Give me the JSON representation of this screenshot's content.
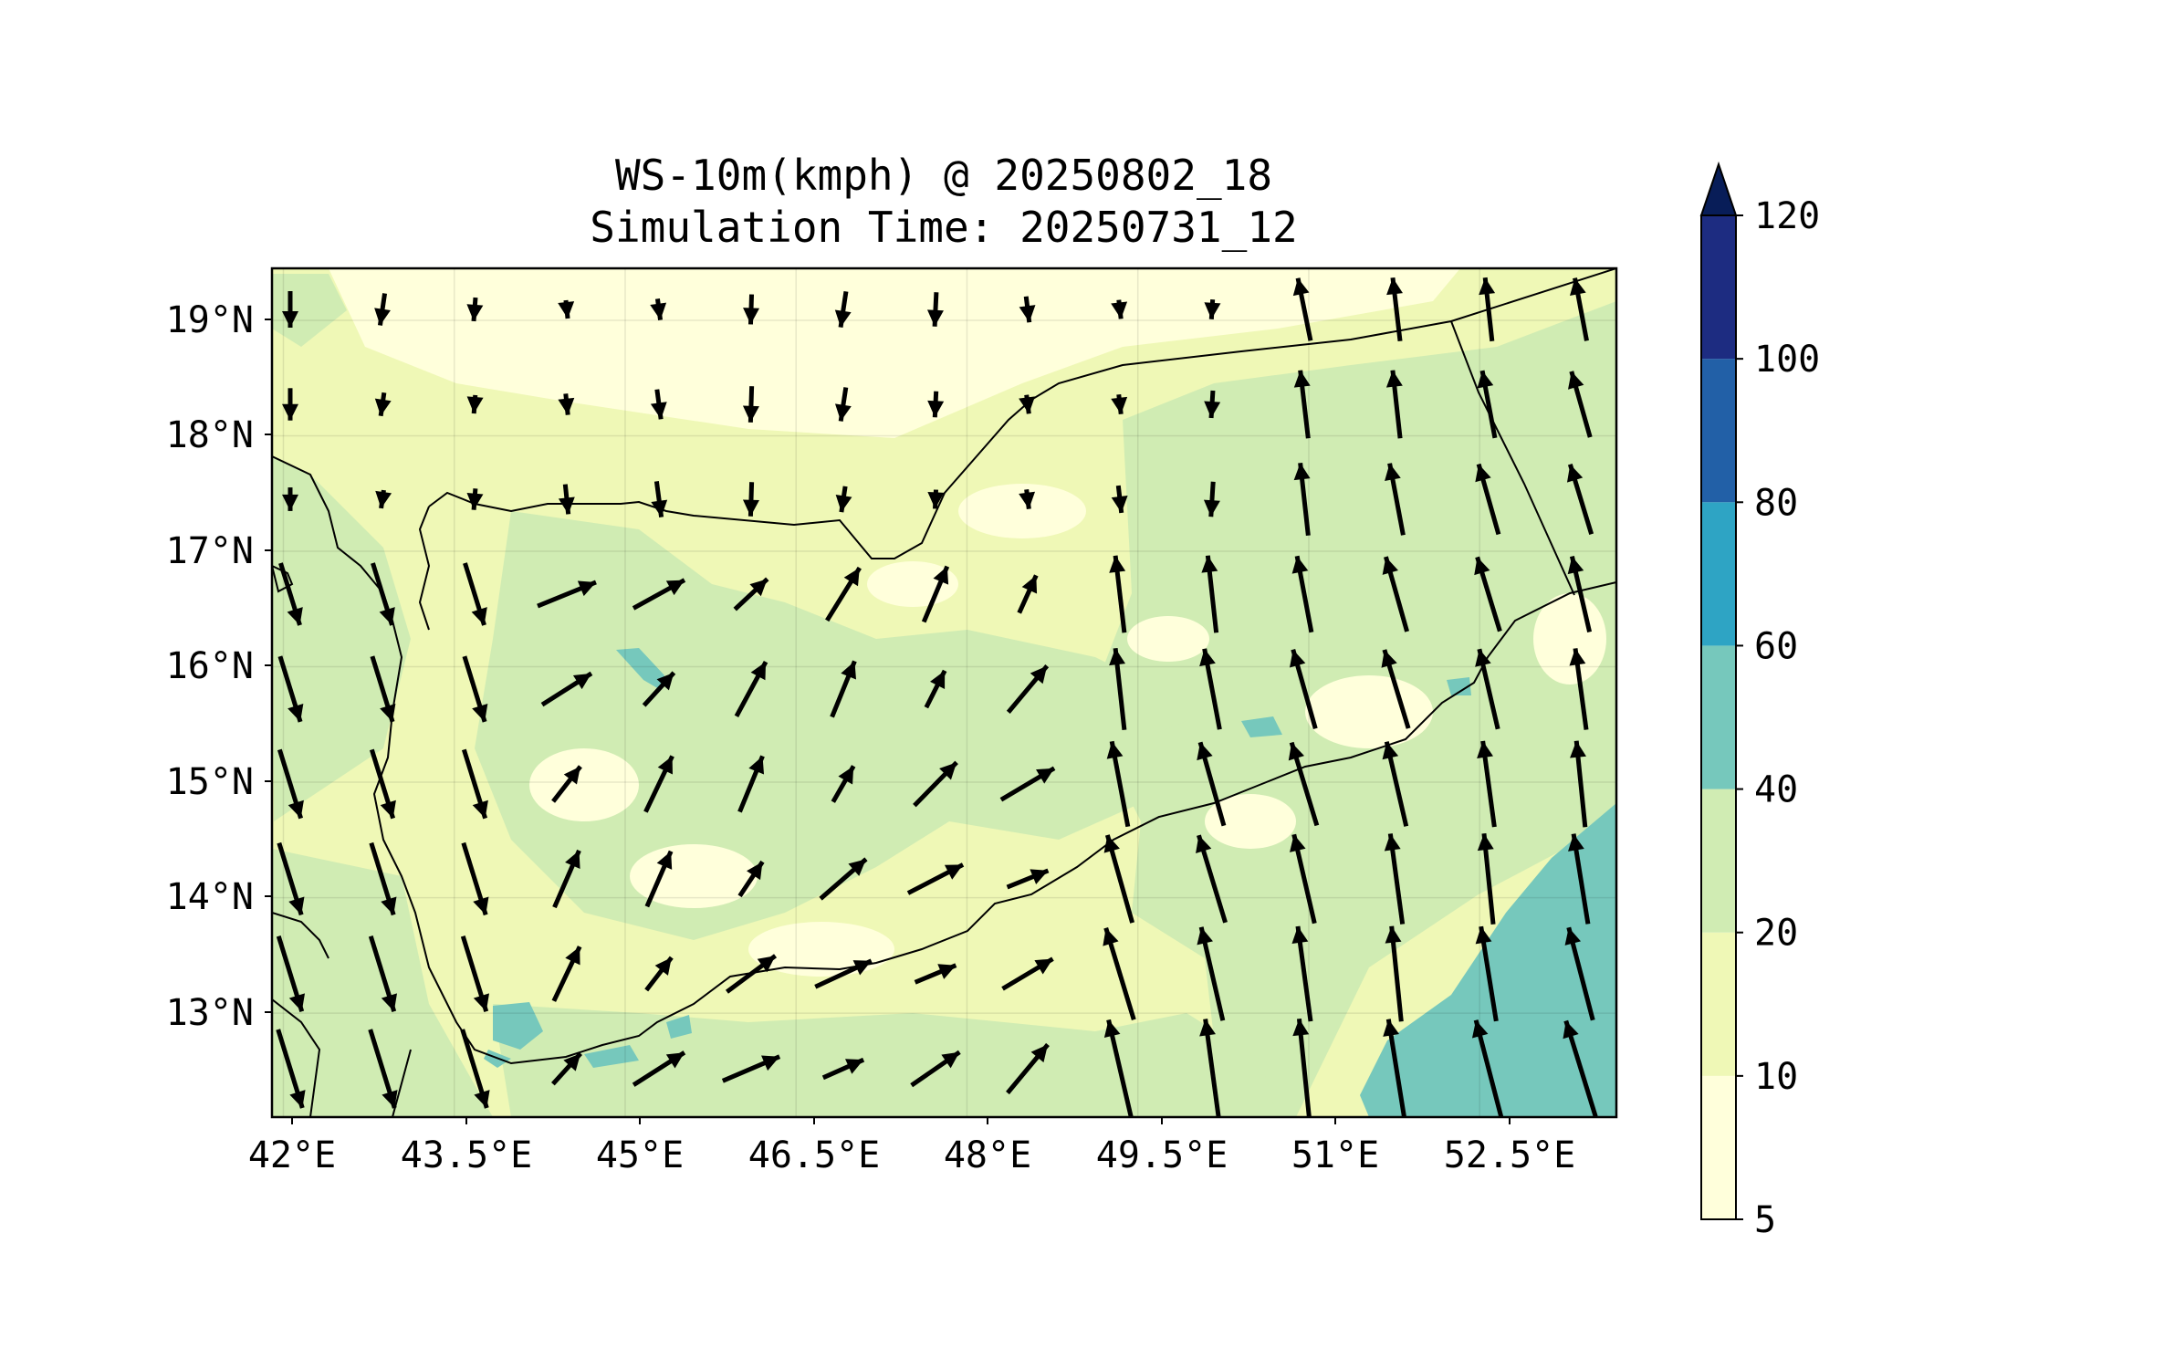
{
  "title": {
    "line1": "WS-10m(kmph) @ 20250802_18",
    "line2": "Simulation Time: 20250731_12"
  },
  "map": {
    "lon_range": [
      41.9,
      53.7
    ],
    "lat_range": [
      12.1,
      19.45
    ],
    "x_ticks": [
      {
        "value": 42.0,
        "label": "42°E"
      },
      {
        "value": 43.5,
        "label": "43.5°E"
      },
      {
        "value": 45.0,
        "label": "45°E"
      },
      {
        "value": 46.5,
        "label": "46.5°E"
      },
      {
        "value": 48.0,
        "label": "48°E"
      },
      {
        "value": 49.5,
        "label": "49.5°E"
      },
      {
        "value": 51.0,
        "label": "51°E"
      },
      {
        "value": 52.5,
        "label": "52.5°E"
      }
    ],
    "y_ticks": [
      {
        "value": 19.0,
        "label": "19°N"
      },
      {
        "value": 18.0,
        "label": "18°N"
      },
      {
        "value": 17.0,
        "label": "17°N"
      },
      {
        "value": 16.0,
        "label": "16°N"
      },
      {
        "value": 15.0,
        "label": "15°N"
      },
      {
        "value": 14.0,
        "label": "14°N"
      },
      {
        "value": 13.0,
        "label": "13°N"
      }
    ],
    "grid": true
  },
  "colorbar": {
    "levels": [
      5,
      10,
      20,
      40,
      60,
      80,
      100,
      120
    ],
    "labels": [
      "5",
      "10",
      "20",
      "40",
      "60",
      "80",
      "100",
      "120"
    ],
    "colors": [
      "#ffffdb",
      "#eff8b6",
      "#d0ecb3",
      "#76c8bc",
      "#2ea4c4",
      "#2260a7",
      "#1d2c81"
    ],
    "extend_color": "#081d58",
    "extend": "max"
  },
  "field_colors": {
    "ocean_low": "#eff8b6",
    "calm": "#ffffdb",
    "moderate": "#d0ecb3",
    "strong": "#76c8bc"
  }
}
